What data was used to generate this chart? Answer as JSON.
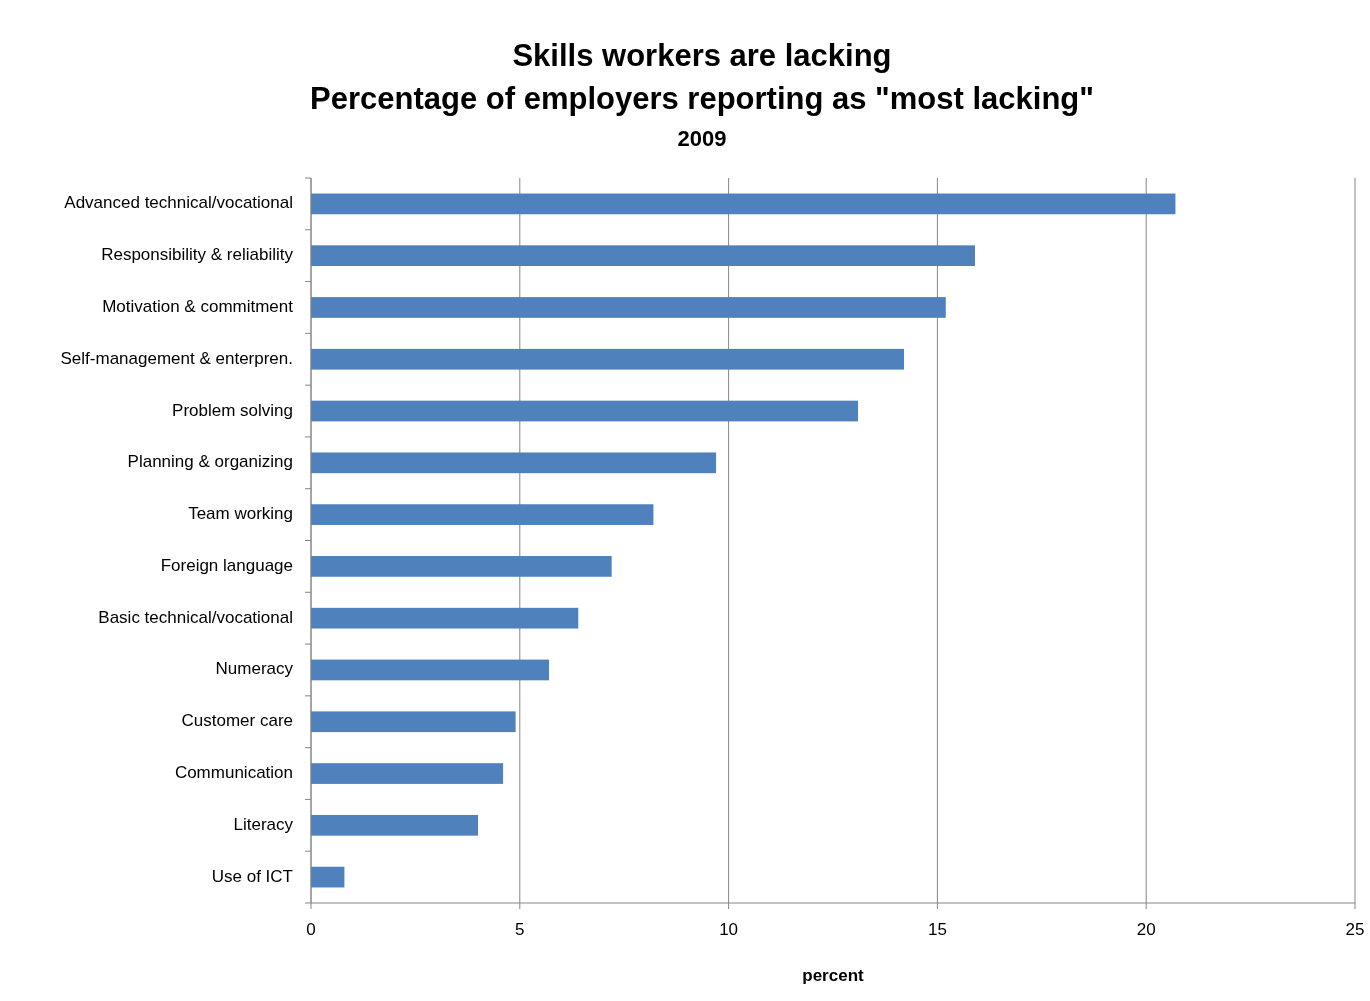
{
  "chart_data": {
    "type": "bar",
    "orientation": "horizontal",
    "title": "Skills workers are lacking\nPercentage of employers reporting as \"most lacking\"",
    "subtitle": "2009",
    "xlabel": "percent",
    "categories": [
      "Advanced technical/vocational",
      "Responsibility & reliability",
      "Motivation & commitment",
      "Self-management & enterpren.",
      "Problem solving",
      "Planning & organizing",
      "Team working",
      "Foreign language",
      "Basic technical/vocational",
      "Numeracy",
      "Customer care",
      "Communication",
      "Literacy",
      "Use of ICT"
    ],
    "values": [
      20.7,
      15.9,
      15.2,
      14.2,
      13.1,
      9.7,
      8.2,
      7.2,
      6.4,
      5.7,
      4.9,
      4.6,
      4.0,
      0.8
    ],
    "color": "#4f81bd",
    "xlim": [
      0,
      25
    ],
    "xticks": [
      0,
      5,
      10,
      15,
      20,
      25
    ],
    "grid": "x"
  }
}
